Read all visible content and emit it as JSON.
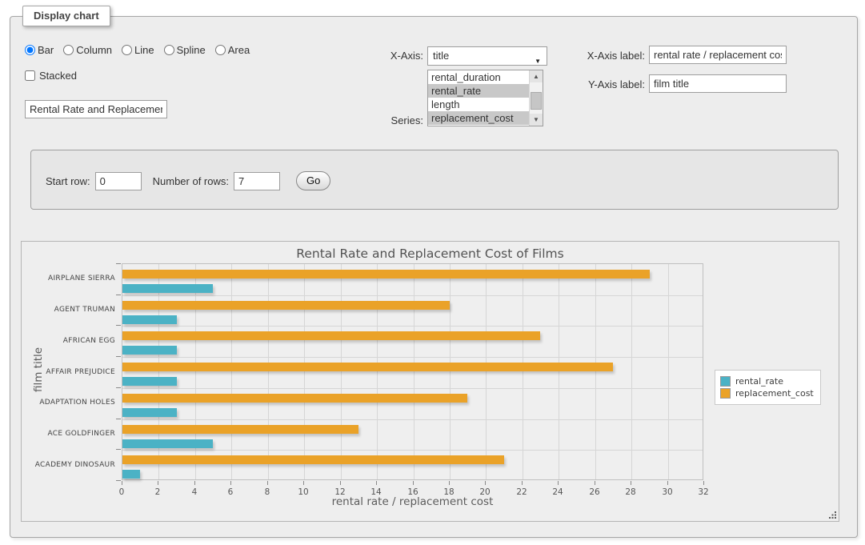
{
  "fieldset": {
    "legend": "Display chart"
  },
  "chart_type": {
    "options": [
      {
        "label": "Bar",
        "checked": true
      },
      {
        "label": "Column",
        "checked": false
      },
      {
        "label": "Line",
        "checked": false
      },
      {
        "label": "Spline",
        "checked": false
      },
      {
        "label": "Area",
        "checked": false
      }
    ]
  },
  "stacked": {
    "label": "Stacked",
    "checked": false
  },
  "title_input": {
    "value": "Rental Rate and Replacemer"
  },
  "x_axis": {
    "label": "X-Axis:",
    "selected": "title",
    "arrow_icon": "▼"
  },
  "series": {
    "label": "Series:",
    "options": [
      {
        "label": "rental_duration",
        "selected": false
      },
      {
        "label": "rental_rate",
        "selected": true
      },
      {
        "label": "length",
        "selected": false
      },
      {
        "label": "replacement_cost",
        "selected": true
      }
    ],
    "scroll_up_icon": "▲",
    "scroll_down_icon": "▼"
  },
  "x_axis_label": {
    "label": "X-Axis label:",
    "value": "rental rate / replacement cost"
  },
  "y_axis_label": {
    "label": "Y-Axis label:",
    "value": "film title"
  },
  "row_controls": {
    "start_row_label": "Start row:",
    "start_row_value": "0",
    "num_rows_label": "Number of rows:",
    "num_rows_value": "7",
    "go_label": "Go"
  },
  "chart_data": {
    "type": "bar",
    "orientation": "horizontal",
    "title": "Rental Rate and Replacement Cost of Films",
    "xlabel": "rental rate / replacement cost",
    "ylabel": "film title",
    "categories": [
      "AIRPLANE SIERRA",
      "AGENT TRUMAN",
      "AFRICAN EGG",
      "AFFAIR PREJUDICE",
      "ADAPTATION HOLES",
      "ACE GOLDFINGER",
      "ACADEMY DINOSAUR"
    ],
    "series": [
      {
        "name": "rental_rate",
        "color": "#4bb2c5",
        "values": [
          4.99,
          2.99,
          2.99,
          2.99,
          2.99,
          4.99,
          0.99
        ]
      },
      {
        "name": "replacement_cost",
        "color": "#eaa228",
        "values": [
          28.99,
          17.99,
          22.99,
          26.99,
          18.99,
          12.99,
          20.99
        ]
      }
    ],
    "xlim": [
      0,
      32
    ],
    "xticks": [
      0,
      2,
      4,
      6,
      8,
      10,
      12,
      14,
      16,
      18,
      20,
      22,
      24,
      26,
      28,
      30,
      32
    ],
    "grid": true,
    "legend_position": "east",
    "bar_order_in_group": [
      "replacement_cost",
      "rental_rate"
    ]
  }
}
